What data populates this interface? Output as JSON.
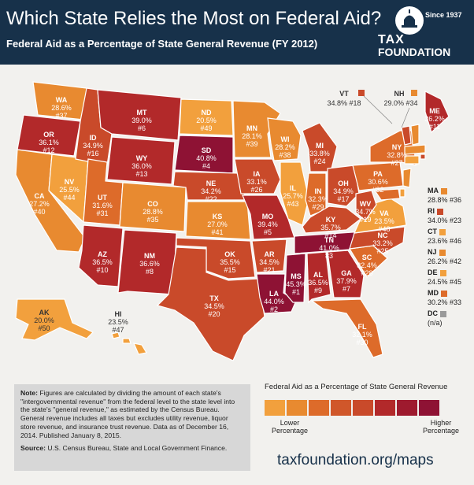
{
  "header": {
    "title": "Which State Relies the Most on Federal Aid?",
    "subtitle": "Federal Aid as a Percentage of State General Revenue (FY 2012)",
    "logo_since": "Since 1937",
    "logo_tax": "TAX",
    "logo_foundation": "FOUNDATION"
  },
  "colors": {
    "lowest": "#f2a03d",
    "low": "#e88a30",
    "mid": "#dd6b2a",
    "midhigh": "#c94a2a",
    "high": "#b2292a",
    "highest": "#8e1234",
    "na": "#9a9a9a"
  },
  "states": [
    {
      "abbr": "WA",
      "value": "28.6%",
      "rank": "#37"
    },
    {
      "abbr": "OR",
      "value": "36.1%",
      "rank": "#12"
    },
    {
      "abbr": "CA",
      "value": "27.2%",
      "rank": "#40"
    },
    {
      "abbr": "NV",
      "value": "25.5%",
      "rank": "#44"
    },
    {
      "abbr": "ID",
      "value": "34.9%",
      "rank": "#16"
    },
    {
      "abbr": "MT",
      "value": "39.0%",
      "rank": "#6"
    },
    {
      "abbr": "WY",
      "value": "36.0%",
      "rank": "#13"
    },
    {
      "abbr": "UT",
      "value": "31.6%",
      "rank": "#31"
    },
    {
      "abbr": "AZ",
      "value": "36.5%",
      "rank": "#10"
    },
    {
      "abbr": "CO",
      "value": "28.8%",
      "rank": "#35"
    },
    {
      "abbr": "NM",
      "value": "36.6%",
      "rank": "#8"
    },
    {
      "abbr": "ND",
      "value": "20.5%",
      "rank": "#49"
    },
    {
      "abbr": "SD",
      "value": "40.8%",
      "rank": "#4"
    },
    {
      "abbr": "NE",
      "value": "34.2%",
      "rank": "#22"
    },
    {
      "abbr": "KS",
      "value": "27.0%",
      "rank": "#41"
    },
    {
      "abbr": "OK",
      "value": "35.5%",
      "rank": "#15"
    },
    {
      "abbr": "TX",
      "value": "34.5%",
      "rank": "#20"
    },
    {
      "abbr": "MN",
      "value": "28.1%",
      "rank": "#39"
    },
    {
      "abbr": "IA",
      "value": "33.1%",
      "rank": "#26"
    },
    {
      "abbr": "MO",
      "value": "39.4%",
      "rank": "#5"
    },
    {
      "abbr": "AR",
      "value": "34.5%",
      "rank": "#21"
    },
    {
      "abbr": "LA",
      "value": "44.0%",
      "rank": "#2"
    },
    {
      "abbr": "WI",
      "value": "28.2%",
      "rank": "#38"
    },
    {
      "abbr": "IL",
      "value": "25.7%",
      "rank": "#43"
    },
    {
      "abbr": "MI",
      "value": "33.8%",
      "rank": "#24"
    },
    {
      "abbr": "IN",
      "value": "32.3%",
      "rank": "#29"
    },
    {
      "abbr": "OH",
      "value": "34.9%",
      "rank": "#17"
    },
    {
      "abbr": "KY",
      "value": "35.7%",
      "rank": "#14"
    },
    {
      "abbr": "TN",
      "value": "41.0%",
      "rank": "#3"
    },
    {
      "abbr": "MS",
      "value": "45.3%",
      "rank": "#1"
    },
    {
      "abbr": "AL",
      "value": "36.5%",
      "rank": "#9"
    },
    {
      "abbr": "GA",
      "value": "37.9%",
      "rank": "#7"
    },
    {
      "abbr": "FL",
      "value": "32.1%",
      "rank": "#30"
    },
    {
      "abbr": "SC",
      "value": "32.4%",
      "rank": "#28"
    },
    {
      "abbr": "NC",
      "value": "33.2%",
      "rank": "#25"
    },
    {
      "abbr": "VA",
      "value": "23.5%",
      "rank": "#48"
    },
    {
      "abbr": "WV",
      "value": "34.7%",
      "rank": "#19"
    },
    {
      "abbr": "PA",
      "value": "30.6%",
      "rank": "#32"
    },
    {
      "abbr": "NY",
      "value": "32.8%",
      "rank": "#27"
    },
    {
      "abbr": "ME",
      "value": "36.2%",
      "rank": "#11"
    },
    {
      "abbr": "AK",
      "value": "20.0%",
      "rank": "#50"
    },
    {
      "abbr": "HI",
      "value": "23.5%",
      "rank": "#47"
    }
  ],
  "northeast_callouts": {
    "vt": {
      "abbr": "VT",
      "value": "34.8% #18"
    },
    "nh": {
      "abbr": "NH",
      "value": "29.0% #34"
    }
  },
  "side_legend": [
    {
      "abbr": "MA",
      "value": "28.8% #36"
    },
    {
      "abbr": "RI",
      "value": "34.0% #23"
    },
    {
      "abbr": "CT",
      "value": "23.6% #46"
    },
    {
      "abbr": "NJ",
      "value": "26.2% #42"
    },
    {
      "abbr": "DE",
      "value": "24.5% #45"
    },
    {
      "abbr": "MD",
      "value": "30.2% #33"
    },
    {
      "abbr": "DC",
      "value": "(n/a)"
    }
  ],
  "note": {
    "label": "Note:",
    "text": "Figures are calculated by dividing the amount of each state's \"intergovernmental revenue\" from the federal level to the state level into the state's \"general revenue,\" as estimated by the Census Bureau. General revenue includes all taxes but excludes utility revenue, liquor store revenue, and insurance trust revenue. Data as of December 16, 2014. Published January 8, 2015.",
    "source_label": "Source:",
    "source_text": "U.S. Census Bureau, State and Local Government Finance."
  },
  "legend": {
    "title": "Federal Aid as a Percentage of State General Revenue",
    "low": "Lower Percentage",
    "high": "Higher Percentage"
  },
  "url": "taxfoundation.org/maps"
}
